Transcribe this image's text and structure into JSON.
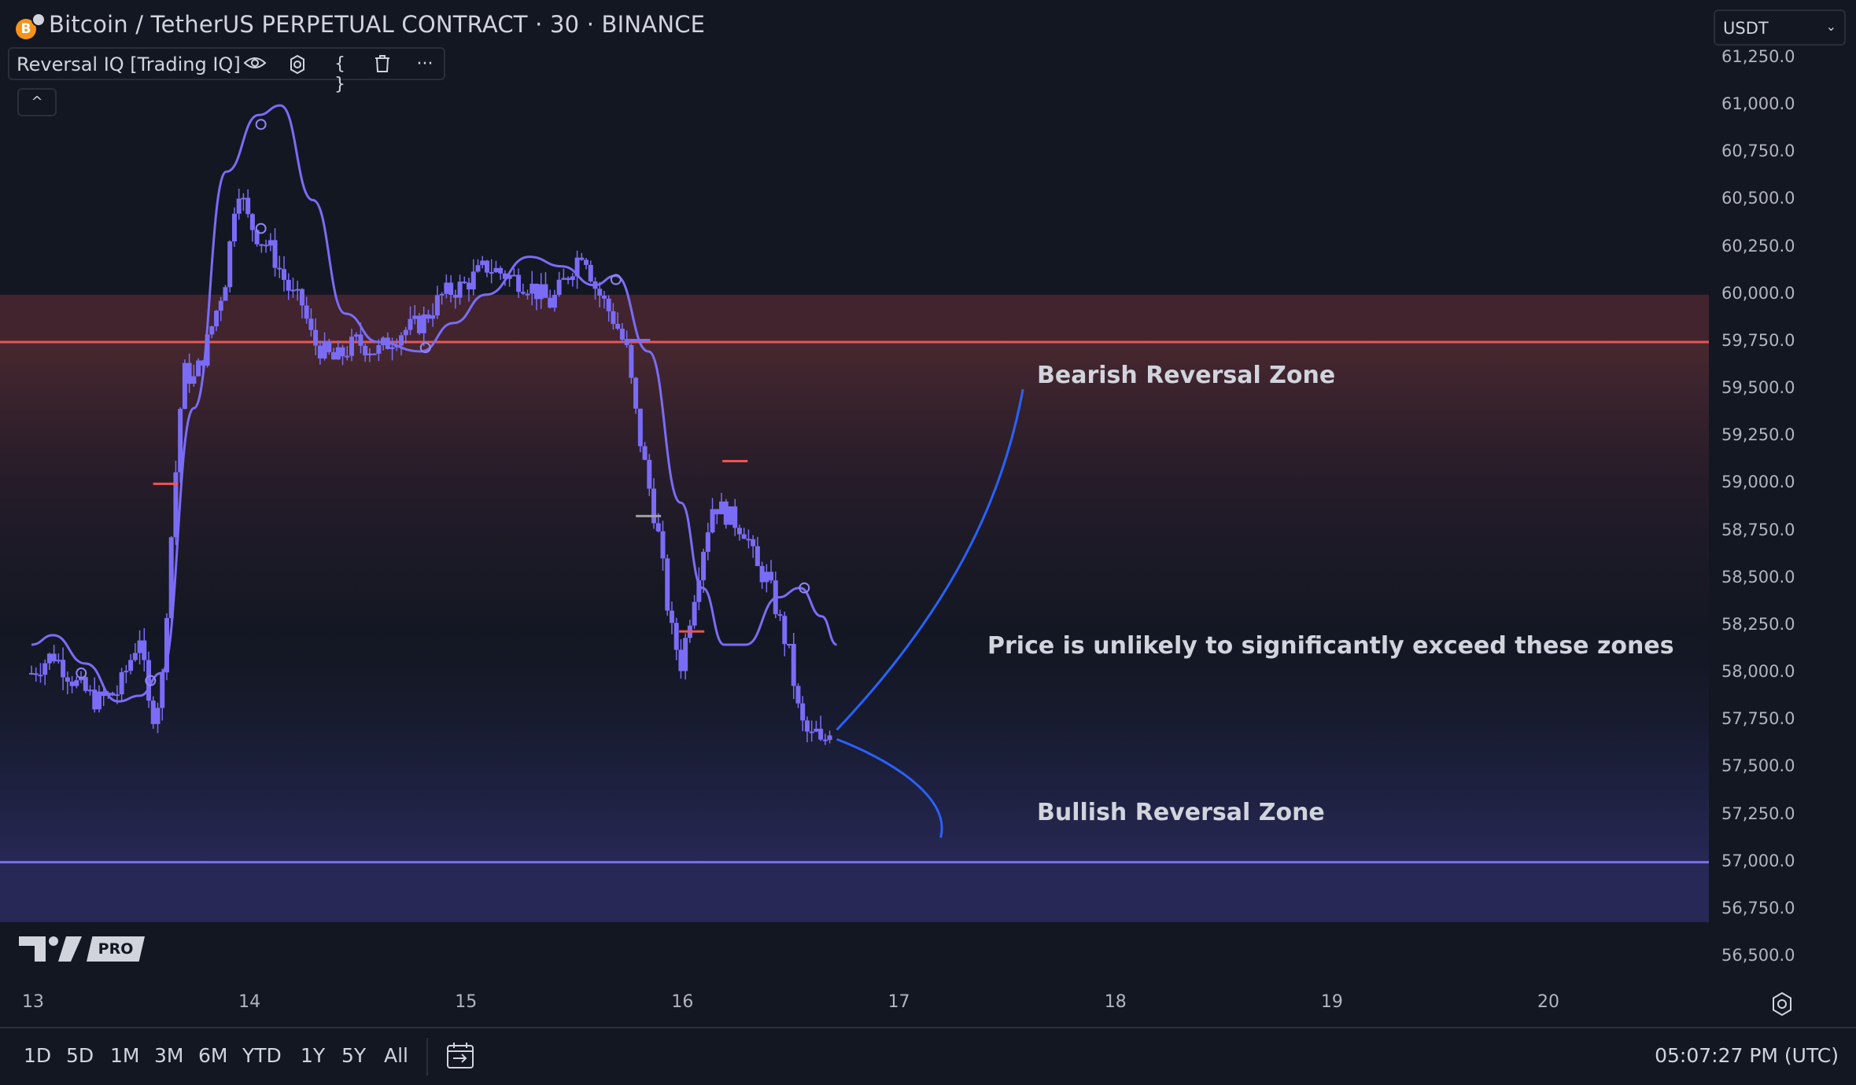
{
  "header": {
    "symbol_icon": "bitcoin-icon",
    "coin_glyph": "B",
    "title": "Bitcoin / TetherUS PERPETUAL CONTRACT · 30 · BINANCE"
  },
  "indicator": {
    "name": "Reversal IQ [Trading IQ]",
    "icons": [
      "eye-icon",
      "gear-icon",
      "code-braces-icon",
      "trash-icon",
      "more-icon"
    ],
    "eye_glyph": "👁",
    "gear_glyph": "⚙",
    "code_glyph": "{ }",
    "trash_glyph": "🗑",
    "more_glyph": "···",
    "collapse_glyph": "^"
  },
  "currency": {
    "selected": "USDT",
    "chevron": "⌄"
  },
  "price_axis": {
    "labels": [
      "61,250.0",
      "61,000.0",
      "60,750.0",
      "60,500.0",
      "60,250.0",
      "60,000.0",
      "59,750.0",
      "59,500.0",
      "59,250.0",
      "59,000.0",
      "58,750.0",
      "58,500.0",
      "58,250.0",
      "58,000.0",
      "57,750.0",
      "57,500.0",
      "57,250.0",
      "57,000.0",
      "56,750.0",
      "56,500.0"
    ],
    "values": [
      61250,
      61000,
      60750,
      60500,
      60250,
      60000,
      59750,
      59500,
      59250,
      59000,
      58750,
      58500,
      58250,
      58000,
      57750,
      57500,
      57250,
      57000,
      56750,
      56500
    ]
  },
  "time_axis": {
    "labels": [
      "13",
      "14",
      "15",
      "16",
      "17",
      "18",
      "19",
      "20"
    ],
    "days": [
      13,
      14,
      15,
      16,
      17,
      18,
      19,
      20
    ]
  },
  "zones": {
    "bearish": {
      "label": "Bearish Reversal Zone",
      "line_price": 59750,
      "top_price": 60000,
      "color": "#f05350"
    },
    "bullish": {
      "label": "Bullish Reversal Zone",
      "line_price": 57000,
      "bottom_price": 56800,
      "color": "#7b6cf6"
    }
  },
  "annotation": "Price is unlikely to significantly exceed these zones",
  "branding": {
    "logo": "tradingview-logo",
    "badge": "PRO"
  },
  "bottom_bar": {
    "ranges": [
      "1D",
      "5D",
      "1M",
      "3M",
      "6M",
      "YTD",
      "1Y",
      "5Y",
      "All"
    ],
    "compare_icon": "date-range-icon",
    "clock": "05:07:27 PM (UTC)"
  },
  "colors": {
    "background": "#131722",
    "candle": "#7b6cf6",
    "curve": "#7b6cf6",
    "arrow": "#2962ff"
  },
  "chart_data": {
    "type": "line",
    "title": "",
    "xlabel": "",
    "ylabel": "",
    "ylim": [
      56400,
      61300
    ],
    "xlim": [
      12.9,
      20.8
    ],
    "series": [
      {
        "x": [
          13.0,
          13.1,
          13.2,
          13.3,
          13.4,
          13.5,
          13.55,
          13.6,
          13.65,
          13.7,
          13.75,
          13.8,
          13.9,
          13.95,
          14.0,
          14.05,
          14.1,
          14.2,
          14.25,
          14.3,
          14.4,
          14.5,
          14.6,
          14.7,
          14.8,
          14.9,
          15.0,
          15.1,
          15.2,
          15.3,
          15.4,
          15.5,
          15.55,
          15.6,
          15.7,
          15.75,
          15.8,
          15.9,
          15.95,
          16.0,
          16.1,
          16.15,
          16.2,
          16.3,
          16.35,
          16.4,
          16.5,
          16.55,
          16.6,
          16.62,
          16.65,
          16.7
        ],
        "y": [
          58000,
          58100,
          57950,
          57850,
          57900,
          58200,
          57750,
          57900,
          58800,
          59600,
          59550,
          59700,
          60100,
          60600,
          60400,
          60300,
          60250,
          60000,
          59950,
          59750,
          59650,
          59750,
          59700,
          59800,
          59850,
          60000,
          60050,
          60150,
          60100,
          60050,
          59950,
          60150,
          60250,
          60050,
          59850,
          59700,
          59300,
          58700,
          58250,
          58050,
          58650,
          58900,
          58850,
          58750,
          58550,
          58500,
          58100,
          57750,
          57650,
          57700,
          57600,
          57750
        ]
      }
    ]
  }
}
